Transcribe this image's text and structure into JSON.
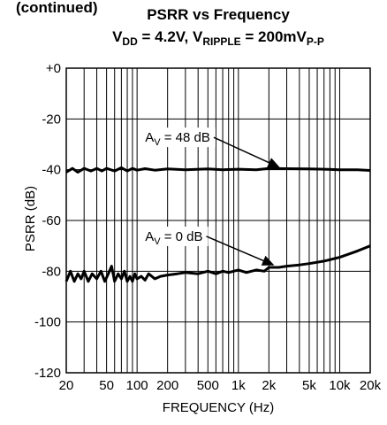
{
  "header_fragment": "(continued)",
  "chart_data": {
    "type": "line",
    "title": "PSRR vs Frequency",
    "subtitle": {
      "parts": [
        {
          "text": "V",
          "sub": false
        },
        {
          "text": "DD",
          "sub": true
        },
        {
          "text": " = 4.2V, V",
          "sub": false
        },
        {
          "text": "RIPPLE",
          "sub": true
        },
        {
          "text": " = 200mV",
          "sub": false
        },
        {
          "text": "P-P",
          "sub": true
        }
      ]
    },
    "xlabel": "FREQUENCY (Hz)",
    "ylabel": "PSRR (dB)",
    "xscale": "log",
    "xlim": [
      20,
      20000
    ],
    "ylim": [
      -120,
      0
    ],
    "grid": true,
    "x_ticks": [
      {
        "value": 20,
        "label": "20"
      },
      {
        "value": 50,
        "label": "50"
      },
      {
        "value": 100,
        "label": "100"
      },
      {
        "value": 200,
        "label": "200"
      },
      {
        "value": 500,
        "label": "500"
      },
      {
        "value": 1000,
        "label": "1k"
      },
      {
        "value": 2000,
        "label": "2k"
      },
      {
        "value": 5000,
        "label": "5k"
      },
      {
        "value": 10000,
        "label": "10k"
      },
      {
        "value": 20000,
        "label": "20k"
      }
    ],
    "y_ticks": [
      {
        "value": 0,
        "label": "+0"
      },
      {
        "value": -20,
        "label": "-20"
      },
      {
        "value": -40,
        "label": "-40"
      },
      {
        "value": -60,
        "label": "-60"
      },
      {
        "value": -80,
        "label": "-80"
      },
      {
        "value": -100,
        "label": "-100"
      },
      {
        "value": -120,
        "label": "-120"
      }
    ],
    "series": [
      {
        "name": "A_V = 48 dB",
        "x": [
          20,
          23,
          26,
          30,
          35,
          40,
          45,
          50,
          60,
          70,
          80,
          90,
          100,
          120,
          150,
          200,
          300,
          500,
          700,
          1000,
          1500,
          2000,
          3000,
          5000,
          7000,
          10000,
          15000,
          20000
        ],
        "y": [
          -41,
          -39.5,
          -41,
          -39.5,
          -40.5,
          -39.5,
          -40.5,
          -39.5,
          -40.5,
          -39.2,
          -40.5,
          -39.5,
          -40.2,
          -39.6,
          -40.2,
          -39.7,
          -40,
          -39.7,
          -40,
          -39.8,
          -40,
          -39.5,
          -39.6,
          -39.7,
          -39.8,
          -40,
          -40,
          -40.3
        ]
      },
      {
        "name": "A_V = 0 dB",
        "x": [
          20,
          22,
          24,
          26,
          28,
          30,
          33,
          36,
          40,
          44,
          48,
          52,
          56,
          60,
          65,
          70,
          75,
          80,
          85,
          90,
          95,
          100,
          110,
          120,
          130,
          150,
          170,
          200,
          250,
          300,
          400,
          500,
          600,
          700,
          800,
          1000,
          1200,
          1500,
          1800,
          2000,
          2500,
          3000,
          4000,
          5000,
          7000,
          10000,
          15000,
          20000
        ],
        "y": [
          -84,
          -80,
          -84,
          -81,
          -83,
          -80,
          -84,
          -81,
          -83,
          -80,
          -84,
          -81,
          -78,
          -84,
          -81,
          -83,
          -80,
          -84,
          -82,
          -84,
          -81,
          -83,
          -82,
          -83.5,
          -81,
          -83,
          -82,
          -81.5,
          -81,
          -80.5,
          -81,
          -80,
          -81,
          -80,
          -80.5,
          -79.5,
          -80.5,
          -79.5,
          -80,
          -78.5,
          -78.5,
          -78,
          -77.5,
          -77,
          -76,
          -74.5,
          -72,
          -70
        ]
      }
    ],
    "annotations": [
      {
        "label_parts": [
          {
            "text": "A",
            "sub": false
          },
          {
            "text": "V",
            "sub": true
          },
          {
            "text": " = 48 dB",
            "sub": false
          }
        ],
        "text_x": 120,
        "text_y": -29,
        "arrow_to_x": 2500,
        "arrow_to_y": -40
      },
      {
        "label_parts": [
          {
            "text": "A",
            "sub": false
          },
          {
            "text": "V",
            "sub": true
          },
          {
            "text": " = 0 dB",
            "sub": false
          }
        ],
        "text_x": 120,
        "text_y": -68,
        "arrow_to_x": 2200,
        "arrow_to_y": -78.5
      }
    ]
  }
}
